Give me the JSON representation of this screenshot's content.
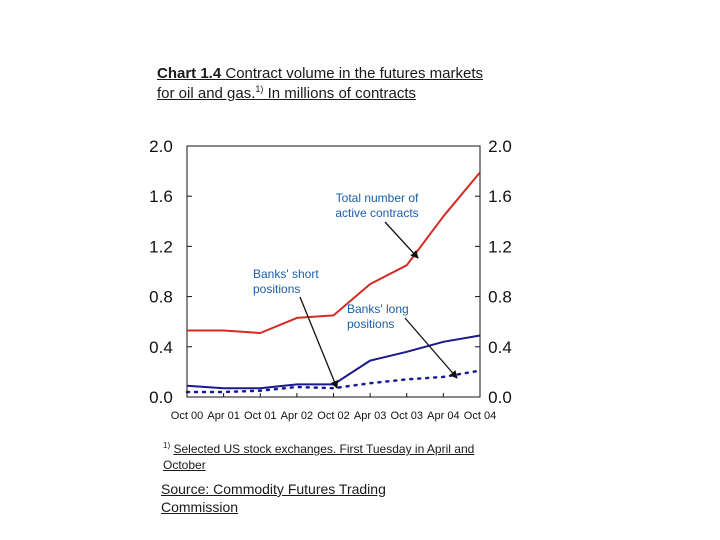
{
  "title": {
    "chart_number": "Chart 1.4",
    "text": "Contract volume in the futures markets for oil and gas.",
    "sup": "1)",
    "unit": "In millions of contracts"
  },
  "footnote": {
    "marker": "1)",
    "text": "Selected US stock exchanges. First Tuesday in April and October"
  },
  "source": "Source: Commodity Futures Trading Commission",
  "chart_data": {
    "type": "line",
    "title": "Contract volume in the futures markets for oil and gas",
    "x": [
      "Oct 00",
      "Apr 01",
      "Oct 01",
      "Apr 02",
      "Oct 02",
      "Apr 03",
      "Oct 03",
      "Apr 04",
      "Oct 04"
    ],
    "ylim": [
      0,
      2.0
    ],
    "yticks": [
      "0.0",
      "0.4",
      "0.8",
      "1.2",
      "1.6",
      "2.0"
    ],
    "series": [
      {
        "name": "Total number of active contracts",
        "color": "#d42a22",
        "style": "solid",
        "values": [
          0.53,
          0.53,
          0.51,
          0.63,
          0.65,
          0.9,
          1.05,
          1.44,
          1.79
        ]
      },
      {
        "name": "Banks' short positions",
        "color": "#1a1a8c",
        "style": "solid",
        "values": [
          0.09,
          0.07,
          0.07,
          0.1,
          0.1,
          0.29,
          0.36,
          0.44,
          0.49
        ]
      },
      {
        "name": "Banks' long positions",
        "color": "#1a1a8c",
        "style": "dotted",
        "values": [
          0.04,
          0.04,
          0.05,
          0.08,
          0.07,
          0.11,
          0.14,
          0.16,
          0.21
        ]
      }
    ],
    "annotations": [
      {
        "lines": [
          "Total number of",
          "active contracts"
        ]
      },
      {
        "lines": [
          "Banks' short",
          "positions"
        ]
      },
      {
        "lines": [
          "Banks' long",
          "positions"
        ]
      }
    ]
  }
}
